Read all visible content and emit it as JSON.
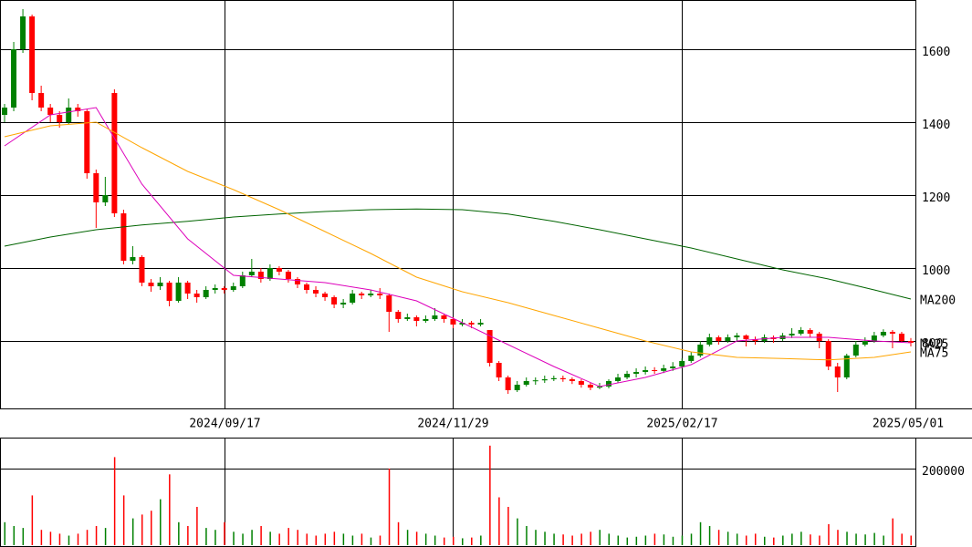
{
  "chart_data": [
    {
      "type": "candlestick",
      "up_color": "#008000",
      "down_color": "#ff0000",
      "xlim": [
        -0.5,
        99.5
      ],
      "xticks": [
        {
          "value": 24,
          "label": "2024/09/17"
        },
        {
          "value": 49,
          "label": "2024/11/29"
        },
        {
          "value": 74,
          "label": "2025/02/17"
        },
        {
          "value": 99.5,
          "label": "2025/05/01"
        }
      ],
      "ylim": [
        615,
        1735
      ],
      "yticks": [
        800,
        1000,
        1200,
        1400,
        1600
      ],
      "grid": true,
      "candles": [
        [
          1420,
          1450,
          1400,
          1440
        ],
        [
          1440,
          1620,
          1430,
          1600
        ],
        [
          1600,
          1710,
          1590,
          1690
        ],
        [
          1690,
          1695,
          1460,
          1480
        ],
        [
          1480,
          1500,
          1430,
          1440
        ],
        [
          1440,
          1450,
          1400,
          1420
        ],
        [
          1420,
          1430,
          1385,
          1400
        ],
        [
          1400,
          1465,
          1395,
          1440
        ],
        [
          1440,
          1450,
          1415,
          1430
        ],
        [
          1430,
          1435,
          1245,
          1260
        ],
        [
          1260,
          1270,
          1110,
          1180
        ],
        [
          1180,
          1250,
          1170,
          1200
        ],
        [
          1480,
          1490,
          1140,
          1150
        ],
        [
          1150,
          1160,
          1010,
          1020
        ],
        [
          1020,
          1060,
          1010,
          1030
        ],
        [
          1030,
          1035,
          950,
          960
        ],
        [
          960,
          970,
          935,
          950
        ],
        [
          950,
          975,
          940,
          960
        ],
        [
          960,
          965,
          895,
          910
        ],
        [
          910,
          975,
          905,
          960
        ],
        [
          960,
          965,
          915,
          930
        ],
        [
          930,
          940,
          905,
          920
        ],
        [
          920,
          950,
          915,
          940
        ],
        [
          940,
          955,
          930,
          945
        ],
        [
          945,
          950,
          930,
          940
        ],
        [
          940,
          960,
          935,
          950
        ],
        [
          950,
          990,
          945,
          980
        ],
        [
          980,
          1025,
          975,
          990
        ],
        [
          990,
          1000,
          960,
          970
        ],
        [
          970,
          1010,
          965,
          1000
        ],
        [
          1000,
          1005,
          980,
          990
        ],
        [
          990,
          995,
          960,
          970
        ],
        [
          970,
          975,
          945,
          955
        ],
        [
          955,
          960,
          930,
          940
        ],
        [
          940,
          950,
          920,
          930
        ],
        [
          930,
          935,
          910,
          920
        ],
        [
          920,
          925,
          890,
          900
        ],
        [
          900,
          915,
          890,
          905
        ],
        [
          905,
          940,
          900,
          930
        ],
        [
          930,
          935,
          915,
          925
        ],
        [
          925,
          940,
          920,
          930
        ],
        [
          930,
          945,
          915,
          925
        ],
        [
          925,
          930,
          825,
          880
        ],
        [
          880,
          885,
          850,
          860
        ],
        [
          860,
          875,
          855,
          865
        ],
        [
          865,
          870,
          840,
          855
        ],
        [
          855,
          870,
          850,
          860
        ],
        [
          860,
          890,
          855,
          870
        ],
        [
          870,
          875,
          850,
          860
        ],
        [
          860,
          865,
          835,
          845
        ],
        [
          845,
          860,
          840,
          850
        ],
        [
          850,
          855,
          835,
          845
        ],
        [
          845,
          860,
          840,
          850
        ],
        [
          830,
          830,
          730,
          740
        ],
        [
          740,
          745,
          690,
          700
        ],
        [
          700,
          705,
          655,
          665
        ],
        [
          665,
          690,
          660,
          680
        ],
        [
          680,
          700,
          675,
          690
        ],
        [
          690,
          700,
          680,
          692
        ],
        [
          692,
          705,
          685,
          695
        ],
        [
          695,
          705,
          690,
          698
        ],
        [
          698,
          705,
          688,
          695
        ],
        [
          695,
          700,
          682,
          690
        ],
        [
          690,
          695,
          672,
          680
        ],
        [
          680,
          685,
          665,
          672
        ],
        [
          672,
          685,
          668,
          675
        ],
        [
          675,
          695,
          670,
          690
        ],
        [
          690,
          710,
          685,
          700
        ],
        [
          700,
          718,
          695,
          710
        ],
        [
          710,
          725,
          700,
          715
        ],
        [
          715,
          730,
          708,
          720
        ],
        [
          720,
          728,
          710,
          718
        ],
        [
          718,
          735,
          712,
          725
        ],
        [
          725,
          742,
          718,
          730
        ],
        [
          730,
          752,
          725,
          745
        ],
        [
          745,
          770,
          740,
          760
        ],
        [
          760,
          800,
          755,
          790
        ],
        [
          790,
          820,
          785,
          810
        ],
        [
          810,
          815,
          790,
          800
        ],
        [
          800,
          818,
          795,
          810
        ],
        [
          810,
          822,
          800,
          815
        ],
        [
          815,
          818,
          785,
          805
        ],
        [
          805,
          812,
          790,
          800
        ],
        [
          800,
          818,
          795,
          810
        ],
        [
          810,
          815,
          795,
          805
        ],
        [
          805,
          822,
          800,
          815
        ],
        [
          815,
          835,
          808,
          820
        ],
        [
          820,
          838,
          815,
          830
        ],
        [
          830,
          835,
          810,
          820
        ],
        [
          820,
          825,
          780,
          800
        ],
        [
          800,
          805,
          720,
          730
        ],
        [
          730,
          740,
          660,
          700
        ],
        [
          700,
          765,
          695,
          760
        ],
        [
          760,
          800,
          755,
          790
        ],
        [
          790,
          810,
          785,
          800
        ],
        [
          800,
          825,
          795,
          815
        ],
        [
          815,
          832,
          810,
          825
        ],
        [
          825,
          830,
          780,
          820
        ],
        [
          820,
          825,
          795,
          800
        ],
        [
          800,
          808,
          785,
          795
        ]
      ],
      "series": [
        {
          "name": "MA200",
          "color": "#006400",
          "x": [
            0,
            5,
            10,
            15,
            20,
            25,
            30,
            35,
            40,
            45,
            50,
            55,
            60,
            65,
            70,
            75,
            80,
            85,
            90,
            95,
            99
          ],
          "values": [
            1060,
            1085,
            1105,
            1118,
            1128,
            1140,
            1148,
            1155,
            1160,
            1162,
            1160,
            1148,
            1128,
            1105,
            1080,
            1055,
            1025,
            995,
            970,
            940,
            915
          ]
        },
        {
          "name": "MA25",
          "color": "#dd00bb",
          "x": [
            0,
            5,
            10,
            15,
            20,
            25,
            30,
            35,
            40,
            45,
            50,
            55,
            60,
            65,
            70,
            75,
            80,
            85,
            90,
            95,
            99
          ],
          "values": [
            1335,
            1420,
            1440,
            1230,
            1080,
            980,
            970,
            960,
            940,
            910,
            850,
            790,
            730,
            675,
            700,
            735,
            800,
            810,
            810,
            800,
            795
          ]
        },
        {
          "name": "MA75",
          "color": "#ffa500",
          "x": [
            0,
            5,
            10,
            15,
            20,
            25,
            30,
            35,
            40,
            45,
            50,
            55,
            60,
            65,
            70,
            75,
            80,
            85,
            90,
            95,
            99
          ],
          "values": [
            1360,
            1390,
            1400,
            1330,
            1265,
            1215,
            1160,
            1100,
            1040,
            975,
            935,
            905,
            870,
            835,
            800,
            770,
            755,
            752,
            748,
            755,
            770
          ]
        }
      ]
    },
    {
      "type": "bar",
      "ylim": [
        0,
        281000
      ],
      "yticks": [
        200000
      ],
      "grid": true,
      "values": [
        60000,
        50000,
        45000,
        130000,
        40000,
        35000,
        30000,
        25000,
        30000,
        40000,
        50000,
        45000,
        230000,
        130000,
        70000,
        80000,
        90000,
        120000,
        185000,
        60000,
        50000,
        100000,
        45000,
        40000,
        60000,
        35000,
        30000,
        40000,
        50000,
        35000,
        30000,
        45000,
        40000,
        30000,
        25000,
        30000,
        35000,
        30000,
        25000,
        30000,
        20000,
        25000,
        200000,
        60000,
        40000,
        35000,
        30000,
        25000,
        20000,
        22000,
        18000,
        20000,
        25000,
        260000,
        125000,
        100000,
        70000,
        50000,
        40000,
        35000,
        30000,
        28000,
        25000,
        30000,
        35000,
        40000,
        30000,
        25000,
        20000,
        22000,
        25000,
        30000,
        28000,
        22000,
        25000,
        30000,
        60000,
        50000,
        40000,
        35000,
        30000,
        25000,
        30000,
        22000,
        20000,
        25000,
        30000,
        35000,
        28000,
        25000,
        55000,
        40000,
        35000,
        30000,
        28000,
        32000,
        25000,
        70000,
        30000,
        25000
      ]
    }
  ]
}
